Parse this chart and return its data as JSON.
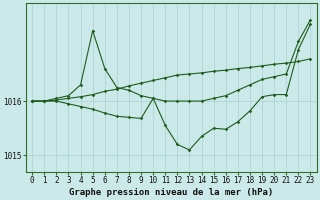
{
  "title": "Graphe pression niveau de la mer (hPa)",
  "bg_color": "#cce9e9",
  "grid_color": "#aad0d0",
  "line_color": "#1e5c1e",
  "x_labels": [
    "0",
    "1",
    "2",
    "3",
    "4",
    "5",
    "6",
    "7",
    "8",
    "9",
    "10",
    "11",
    "12",
    "13",
    "14",
    "15",
    "16",
    "17",
    "18",
    "19",
    "20",
    "21",
    "22",
    "23"
  ],
  "x_values": [
    0,
    1,
    2,
    3,
    4,
    5,
    6,
    7,
    8,
    9,
    10,
    11,
    12,
    13,
    14,
    15,
    16,
    17,
    18,
    19,
    20,
    21,
    22,
    23
  ],
  "lineA_y": [
    1016.0,
    1016.0,
    1016.05,
    1016.1,
    1016.3,
    1017.3,
    1016.6,
    1016.25,
    1016.2,
    1016.1,
    1016.05,
    1016.0,
    1016.0,
    1016.0,
    1016.0,
    1016.05,
    1016.1,
    1016.2,
    1016.3,
    1016.4,
    1016.45,
    1016.5,
    1017.1,
    1017.5
  ],
  "lineB_y": [
    1016.0,
    1016.0,
    1016.02,
    1016.05,
    1016.08,
    1016.12,
    1016.18,
    1016.22,
    1016.28,
    1016.33,
    1016.38,
    1016.43,
    1016.48,
    1016.5,
    1016.52,
    1016.55,
    1016.57,
    1016.6,
    1016.62,
    1016.65,
    1016.68,
    1016.7,
    1016.73,
    1016.78
  ],
  "lineC_y": [
    1016.0,
    1016.0,
    1016.0,
    1015.95,
    1015.9,
    1015.85,
    1015.78,
    1015.72,
    1015.7,
    1015.68,
    1016.05,
    1015.55,
    1015.2,
    1015.1,
    1015.35,
    1015.5,
    1015.48,
    1015.62,
    1015.82,
    1016.08,
    1016.12,
    1016.12,
    1016.95,
    1017.42
  ],
  "ylim": [
    1014.7,
    1017.8
  ],
  "yticks": [
    1015.0,
    1016.0
  ],
  "tick_label_fontsize": 5.5,
  "title_fontsize": 6.5,
  "spine_color": "#2d6e2d"
}
